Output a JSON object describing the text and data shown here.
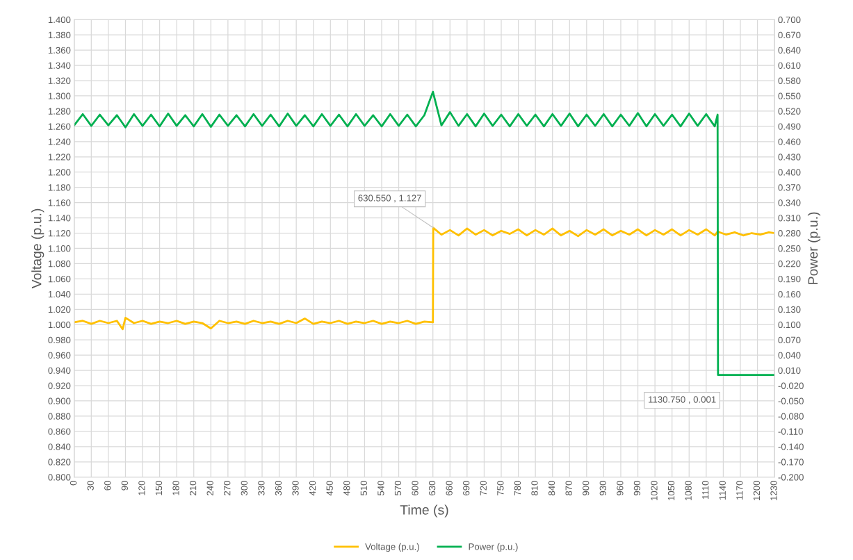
{
  "chart_data": {
    "type": "line",
    "xlabel": "Time (s)",
    "ylabel": "Voltage (p.u.)",
    "y2label": "Power (p.u.)",
    "xlim": [
      0,
      1230
    ],
    "xticks": [
      0,
      30,
      60,
      90,
      120,
      150,
      180,
      210,
      240,
      270,
      300,
      330,
      360,
      390,
      420,
      450,
      480,
      510,
      540,
      570,
      600,
      630,
      660,
      690,
      720,
      750,
      780,
      810,
      840,
      870,
      900,
      930,
      960,
      990,
      1020,
      1050,
      1080,
      1110,
      1140,
      1170,
      1200,
      1230
    ],
    "ylim": [
      0.8,
      1.4
    ],
    "yticks": [
      {
        "value": 0.8,
        "label": "0.800"
      },
      {
        "value": 0.82,
        "label": "0.820"
      },
      {
        "value": 0.84,
        "label": "0.840"
      },
      {
        "value": 0.86,
        "label": "0.860"
      },
      {
        "value": 0.88,
        "label": "0.880"
      },
      {
        "value": 0.9,
        "label": "0.900"
      },
      {
        "value": 0.92,
        "label": "0.920"
      },
      {
        "value": 0.94,
        "label": "0.940"
      },
      {
        "value": 0.96,
        "label": "0.960"
      },
      {
        "value": 0.98,
        "label": "0.980"
      },
      {
        "value": 1.0,
        "label": "1.000"
      },
      {
        "value": 1.02,
        "label": "1.020"
      },
      {
        "value": 1.04,
        "label": "1.040"
      },
      {
        "value": 1.06,
        "label": "1.060"
      },
      {
        "value": 1.08,
        "label": "1.080"
      },
      {
        "value": 1.1,
        "label": "1.100"
      },
      {
        "value": 1.12,
        "label": "1.120"
      },
      {
        "value": 1.14,
        "label": "1.140"
      },
      {
        "value": 1.16,
        "label": "1.160"
      },
      {
        "value": 1.18,
        "label": "1.180"
      },
      {
        "value": 1.2,
        "label": "1.200"
      },
      {
        "value": 1.22,
        "label": "1.220"
      },
      {
        "value": 1.24,
        "label": "1.240"
      },
      {
        "value": 1.26,
        "label": "1.260"
      },
      {
        "value": 1.28,
        "label": "1.280"
      },
      {
        "value": 1.3,
        "label": "1.300"
      },
      {
        "value": 1.32,
        "label": "1.320"
      },
      {
        "value": 1.34,
        "label": "1.340"
      },
      {
        "value": 1.36,
        "label": "1.360"
      },
      {
        "value": 1.38,
        "label": "1.380"
      },
      {
        "value": 1.4,
        "label": "1.400"
      }
    ],
    "y2lim": [
      -0.2,
      0.7
    ],
    "y2ticks": [
      {
        "value": -0.2,
        "label": "-0.200"
      },
      {
        "value": -0.17,
        "label": "-0.170"
      },
      {
        "value": -0.14,
        "label": "-0.140"
      },
      {
        "value": -0.11,
        "label": "-0.110"
      },
      {
        "value": -0.08,
        "label": "-0.080"
      },
      {
        "value": -0.05,
        "label": "-0.050"
      },
      {
        "value": -0.02,
        "label": "-0.020"
      },
      {
        "value": 0.01,
        "label": "0.010"
      },
      {
        "value": 0.04,
        "label": "0.040"
      },
      {
        "value": 0.07,
        "label": "0.070"
      },
      {
        "value": 0.1,
        "label": "0.100"
      },
      {
        "value": 0.13,
        "label": "0.130"
      },
      {
        "value": 0.16,
        "label": "0.160"
      },
      {
        "value": 0.19,
        "label": "0.190"
      },
      {
        "value": 0.22,
        "label": "0.220"
      },
      {
        "value": 0.25,
        "label": "0.250"
      },
      {
        "value": 0.28,
        "label": "0.280"
      },
      {
        "value": 0.31,
        "label": "0.310"
      },
      {
        "value": 0.34,
        "label": "0.340"
      },
      {
        "value": 0.37,
        "label": "0.370"
      },
      {
        "value": 0.4,
        "label": "0.400"
      },
      {
        "value": 0.43,
        "label": "0.430"
      },
      {
        "value": 0.46,
        "label": "0.460"
      },
      {
        "value": 0.49,
        "label": "0.490"
      },
      {
        "value": 0.52,
        "label": "0.520"
      },
      {
        "value": 0.55,
        "label": "0.550"
      },
      {
        "value": 0.58,
        "label": "0.580"
      },
      {
        "value": 0.61,
        "label": "0.610"
      },
      {
        "value": 0.64,
        "label": "0.640"
      },
      {
        "value": 0.67,
        "label": "0.670"
      },
      {
        "value": 0.7,
        "label": "0.700"
      }
    ],
    "grid": true,
    "legend": "bottom",
    "marker": "none",
    "line_style": "solid",
    "series": [
      {
        "name": "Voltage (p.u.)",
        "color": "#ffc000",
        "x": [
          0,
          15,
          30,
          45,
          60,
          75,
          85,
          90,
          105,
          120,
          135,
          150,
          165,
          180,
          195,
          210,
          225,
          240,
          255,
          270,
          285,
          300,
          315,
          330,
          345,
          360,
          375,
          390,
          405,
          420,
          435,
          450,
          465,
          480,
          495,
          510,
          525,
          540,
          555,
          570,
          585,
          600,
          615,
          630,
          630.55,
          645,
          660,
          675,
          690,
          705,
          720,
          735,
          750,
          765,
          780,
          795,
          810,
          825,
          840,
          855,
          870,
          885,
          900,
          915,
          930,
          945,
          960,
          975,
          990,
          1005,
          1020,
          1035,
          1050,
          1065,
          1080,
          1095,
          1110,
          1125,
          1130,
          1145,
          1160,
          1175,
          1190,
          1205,
          1220,
          1230
        ],
        "values": [
          1.003,
          1.005,
          1.001,
          1.005,
          1.002,
          1.005,
          0.994,
          1.009,
          1.002,
          1.005,
          1.001,
          1.004,
          1.002,
          1.005,
          1.001,
          1.004,
          1.002,
          0.995,
          1.005,
          1.002,
          1.004,
          1.001,
          1.005,
          1.002,
          1.004,
          1.001,
          1.005,
          1.002,
          1.008,
          1.001,
          1.004,
          1.002,
          1.005,
          1.001,
          1.004,
          1.002,
          1.005,
          1.001,
          1.004,
          1.002,
          1.005,
          1.001,
          1.004,
          1.003,
          1.127,
          1.118,
          1.124,
          1.117,
          1.126,
          1.118,
          1.124,
          1.117,
          1.123,
          1.119,
          1.125,
          1.117,
          1.124,
          1.118,
          1.126,
          1.117,
          1.123,
          1.116,
          1.124,
          1.118,
          1.125,
          1.117,
          1.123,
          1.118,
          1.125,
          1.117,
          1.124,
          1.118,
          1.125,
          1.117,
          1.124,
          1.118,
          1.125,
          1.117,
          1.122,
          1.118,
          1.121,
          1.117,
          1.12,
          1.118,
          1.121,
          1.12
        ]
      },
      {
        "name": "Power (p.u.)",
        "color": "#00b050",
        "axis": "y2",
        "x": [
          0,
          15,
          30,
          45,
          60,
          75,
          90,
          105,
          120,
          135,
          150,
          165,
          180,
          195,
          210,
          225,
          240,
          255,
          270,
          285,
          300,
          315,
          330,
          345,
          360,
          375,
          390,
          405,
          420,
          435,
          450,
          465,
          480,
          495,
          510,
          525,
          540,
          555,
          570,
          585,
          600,
          615,
          630,
          645,
          660,
          675,
          690,
          705,
          720,
          735,
          750,
          765,
          780,
          795,
          810,
          825,
          840,
          855,
          870,
          885,
          900,
          915,
          930,
          945,
          960,
          975,
          990,
          1005,
          1020,
          1035,
          1050,
          1065,
          1080,
          1095,
          1110,
          1125,
          1130,
          1130.75,
          1230
        ],
        "values": [
          0.492,
          0.514,
          0.491,
          0.513,
          0.492,
          0.512,
          0.488,
          0.514,
          0.491,
          0.513,
          0.49,
          0.515,
          0.491,
          0.512,
          0.49,
          0.514,
          0.489,
          0.513,
          0.491,
          0.512,
          0.49,
          0.514,
          0.491,
          0.513,
          0.49,
          0.515,
          0.491,
          0.512,
          0.49,
          0.514,
          0.491,
          0.513,
          0.49,
          0.514,
          0.491,
          0.512,
          0.49,
          0.514,
          0.491,
          0.513,
          0.49,
          0.512,
          0.558,
          0.492,
          0.518,
          0.491,
          0.514,
          0.49,
          0.515,
          0.491,
          0.513,
          0.49,
          0.514,
          0.491,
          0.513,
          0.49,
          0.514,
          0.491,
          0.515,
          0.49,
          0.513,
          0.491,
          0.514,
          0.49,
          0.513,
          0.491,
          0.516,
          0.49,
          0.514,
          0.491,
          0.513,
          0.49,
          0.515,
          0.491,
          0.514,
          0.49,
          0.513,
          0.001,
          0.001
        ]
      }
    ],
    "annotations": [
      {
        "text": "630.550 , 1.127",
        "x": 630.55,
        "y": 1.127
      },
      "1130.750 , 0.001"
    ]
  }
}
